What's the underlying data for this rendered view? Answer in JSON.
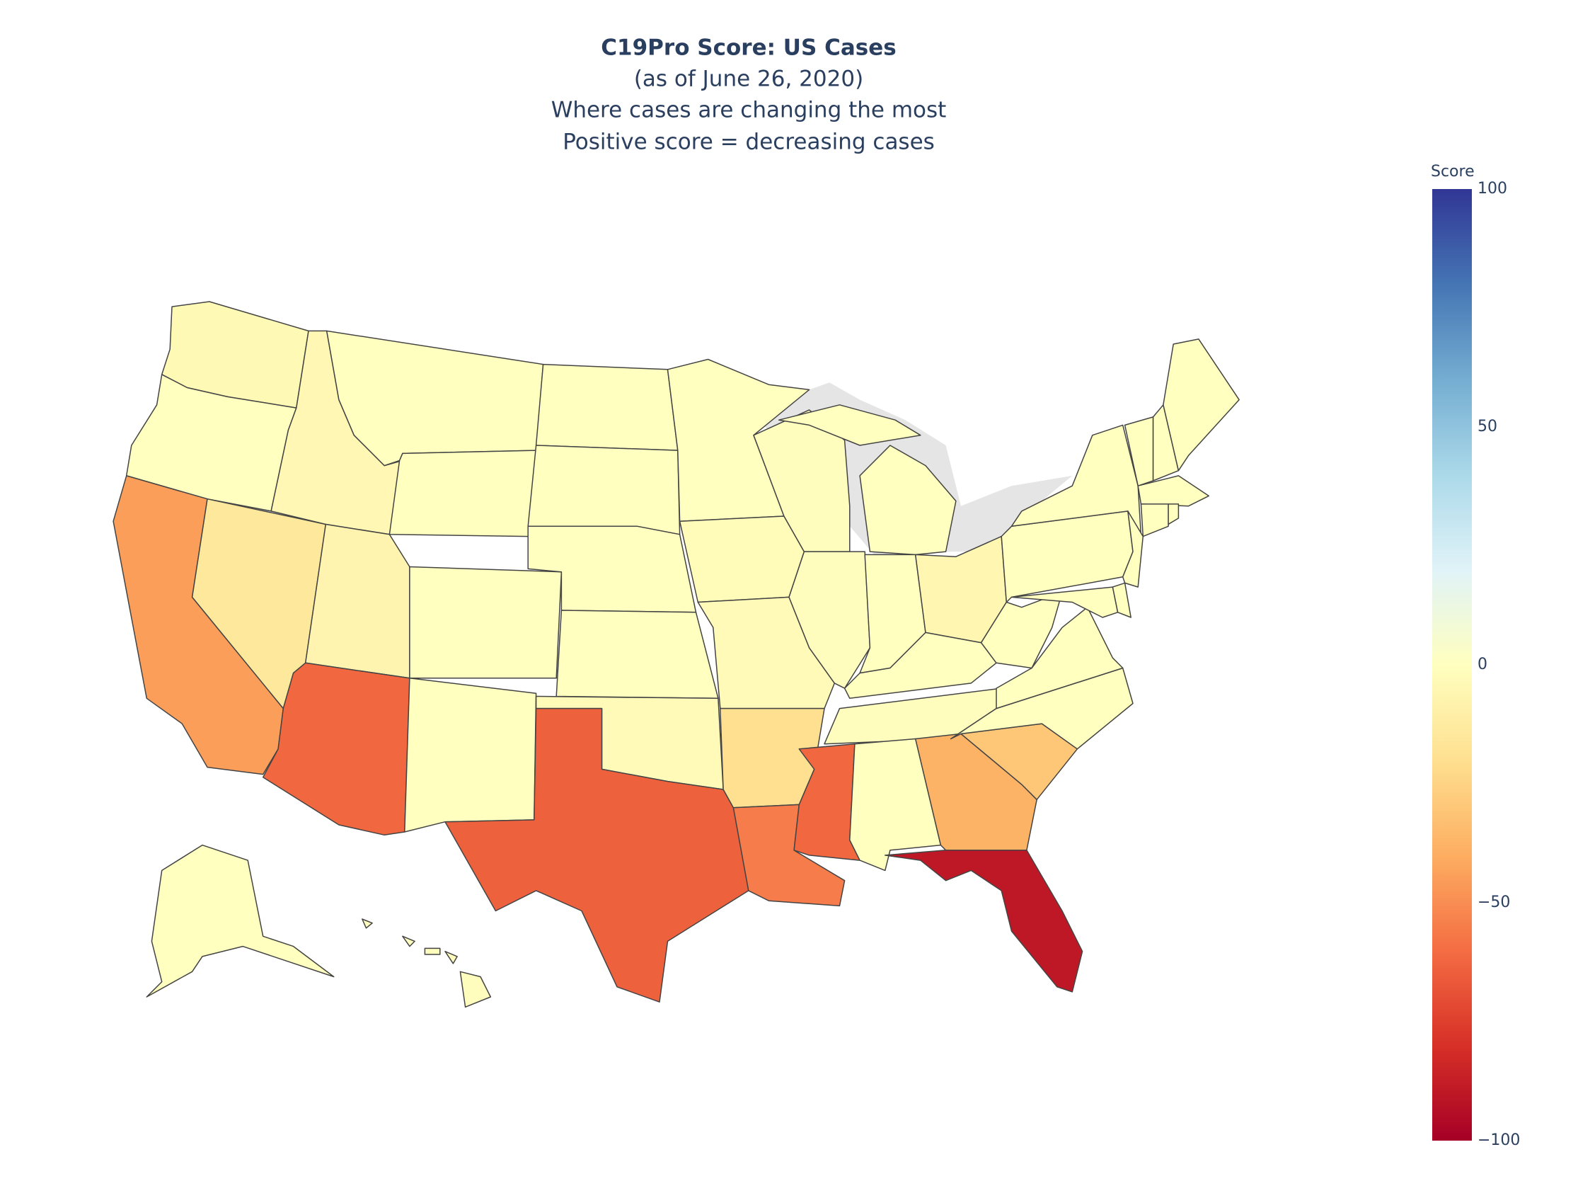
{
  "chart_data": {
    "type": "choropleth",
    "title": "C19Pro Score: US Cases",
    "subtitle": [
      "(as of June 26, 2020)",
      "Where cases are changing the most",
      "Positive score = decreasing cases"
    ],
    "values": [
      -4,
      0,
      -45,
      -15,
      -5,
      0,
      0,
      -7,
      0,
      -62,
      0,
      0,
      0,
      0,
      0,
      -3,
      -64,
      0,
      -2,
      -3,
      -20,
      -55,
      -1,
      -1,
      0,
      0,
      -6,
      0,
      -1,
      -62,
      0,
      -38,
      -90,
      -30,
      0,
      0,
      0,
      0,
      0,
      0,
      0,
      0,
      0,
      0,
      0,
      0,
      0,
      0,
      0,
      -1
    ],
    "colorbar_title": "Score",
    "clim": [
      -100,
      100
    ],
    "cticks": [
      {
        "value": -100,
        "label": "−100"
      },
      {
        "value": -50,
        "label": "−50"
      },
      0,
      50,
      100
    ],
    "colorscale": [
      [
        0,
        "#a50026"
      ],
      [
        0.1,
        "#d73027"
      ],
      [
        0.2,
        "#f46d43"
      ],
      [
        0.3,
        "#fdae61"
      ],
      [
        0.4,
        "#fee090"
      ],
      [
        0.5,
        "#ffffbf"
      ],
      [
        0.6,
        "#e0f3f8"
      ],
      [
        0.7,
        "#abd9e9"
      ],
      [
        0.8,
        "#74add1"
      ],
      [
        0.9,
        "#4575b4"
      ],
      [
        1,
        "#313695"
      ]
    ],
    "border_color": "#444444",
    "lake_color": "#e5e5e5"
  }
}
